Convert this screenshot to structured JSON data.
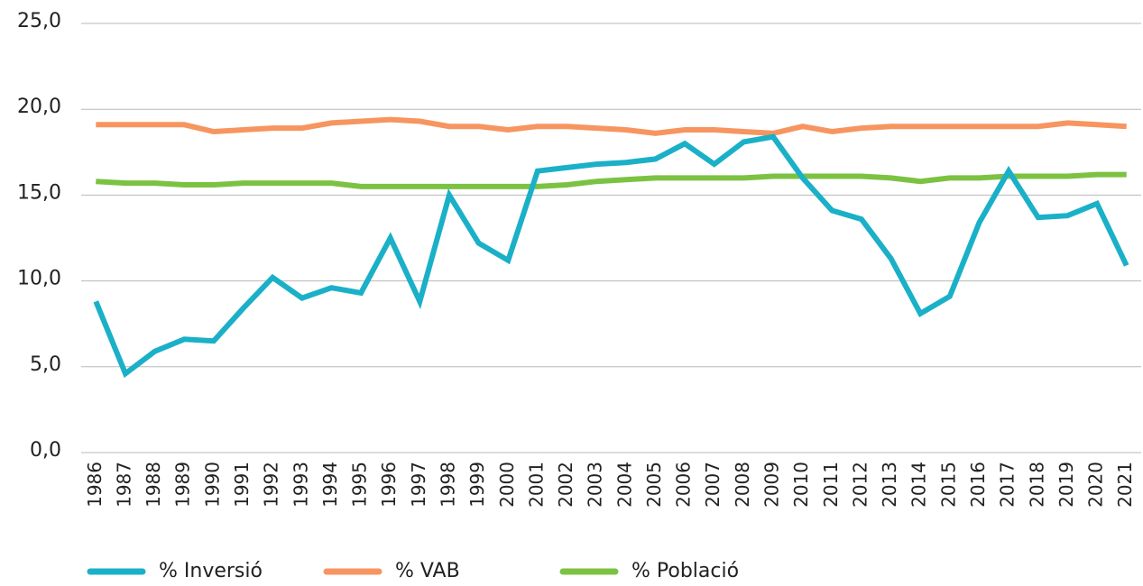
{
  "chart_data": {
    "type": "line",
    "categories": [
      "1986",
      "1987",
      "1988",
      "1989",
      "1990",
      "1991",
      "1992",
      "1993",
      "1994",
      "1995",
      "1996",
      "1997",
      "1998",
      "1999",
      "2000",
      "2001",
      "2002",
      "2003",
      "2004",
      "2005",
      "2006",
      "2007",
      "2008",
      "2009",
      "2010",
      "2011",
      "2012",
      "2013",
      "2014",
      "2015",
      "2016",
      "2017",
      "2018",
      "2019",
      "2020",
      "2021"
    ],
    "series": [
      {
        "name": "% Inversió",
        "color": "#1ab0c8",
        "values": [
          8.8,
          4.6,
          5.9,
          6.6,
          6.5,
          8.4,
          10.2,
          9.0,
          9.6,
          9.3,
          12.5,
          8.8,
          15.0,
          12.2,
          11.2,
          16.4,
          16.6,
          16.8,
          16.9,
          17.1,
          18.0,
          16.8,
          18.1,
          18.4,
          16.0,
          14.1,
          13.6,
          11.3,
          8.1,
          9.1,
          13.4,
          16.4,
          13.7,
          13.8,
          14.5,
          10.9
        ]
      },
      {
        "name": "% VAB",
        "color": "#f79560",
        "values": [
          19.1,
          19.1,
          19.1,
          19.1,
          18.7,
          18.8,
          18.9,
          18.9,
          19.2,
          19.3,
          19.4,
          19.3,
          19.0,
          19.0,
          18.8,
          19.0,
          19.0,
          18.9,
          18.8,
          18.6,
          18.8,
          18.8,
          18.7,
          18.6,
          19.0,
          18.7,
          18.9,
          19.0,
          19.0,
          19.0,
          19.0,
          19.0,
          19.0,
          19.2,
          19.1,
          19.0
        ]
      },
      {
        "name": "% Població",
        "color": "#7cc242",
        "values": [
          15.8,
          15.7,
          15.7,
          15.6,
          15.6,
          15.7,
          15.7,
          15.7,
          15.7,
          15.5,
          15.5,
          15.5,
          15.5,
          15.5,
          15.5,
          15.5,
          15.6,
          15.8,
          15.9,
          16.0,
          16.0,
          16.0,
          16.0,
          16.1,
          16.1,
          16.1,
          16.1,
          16.0,
          15.8,
          16.0,
          16.0,
          16.1,
          16.1,
          16.1,
          16.2,
          16.2
        ]
      }
    ],
    "ylim": [
      0,
      25
    ],
    "yticks": [
      {
        "value": 0,
        "label": "0,0"
      },
      {
        "value": 5,
        "label": "5,0"
      },
      {
        "value": 10,
        "label": "10,0"
      },
      {
        "value": 15,
        "label": "15,0"
      },
      {
        "value": 20,
        "label": "20,0"
      },
      {
        "value": 25,
        "label": "25,0"
      }
    ],
    "grid": true,
    "legend": "bottom-left"
  }
}
